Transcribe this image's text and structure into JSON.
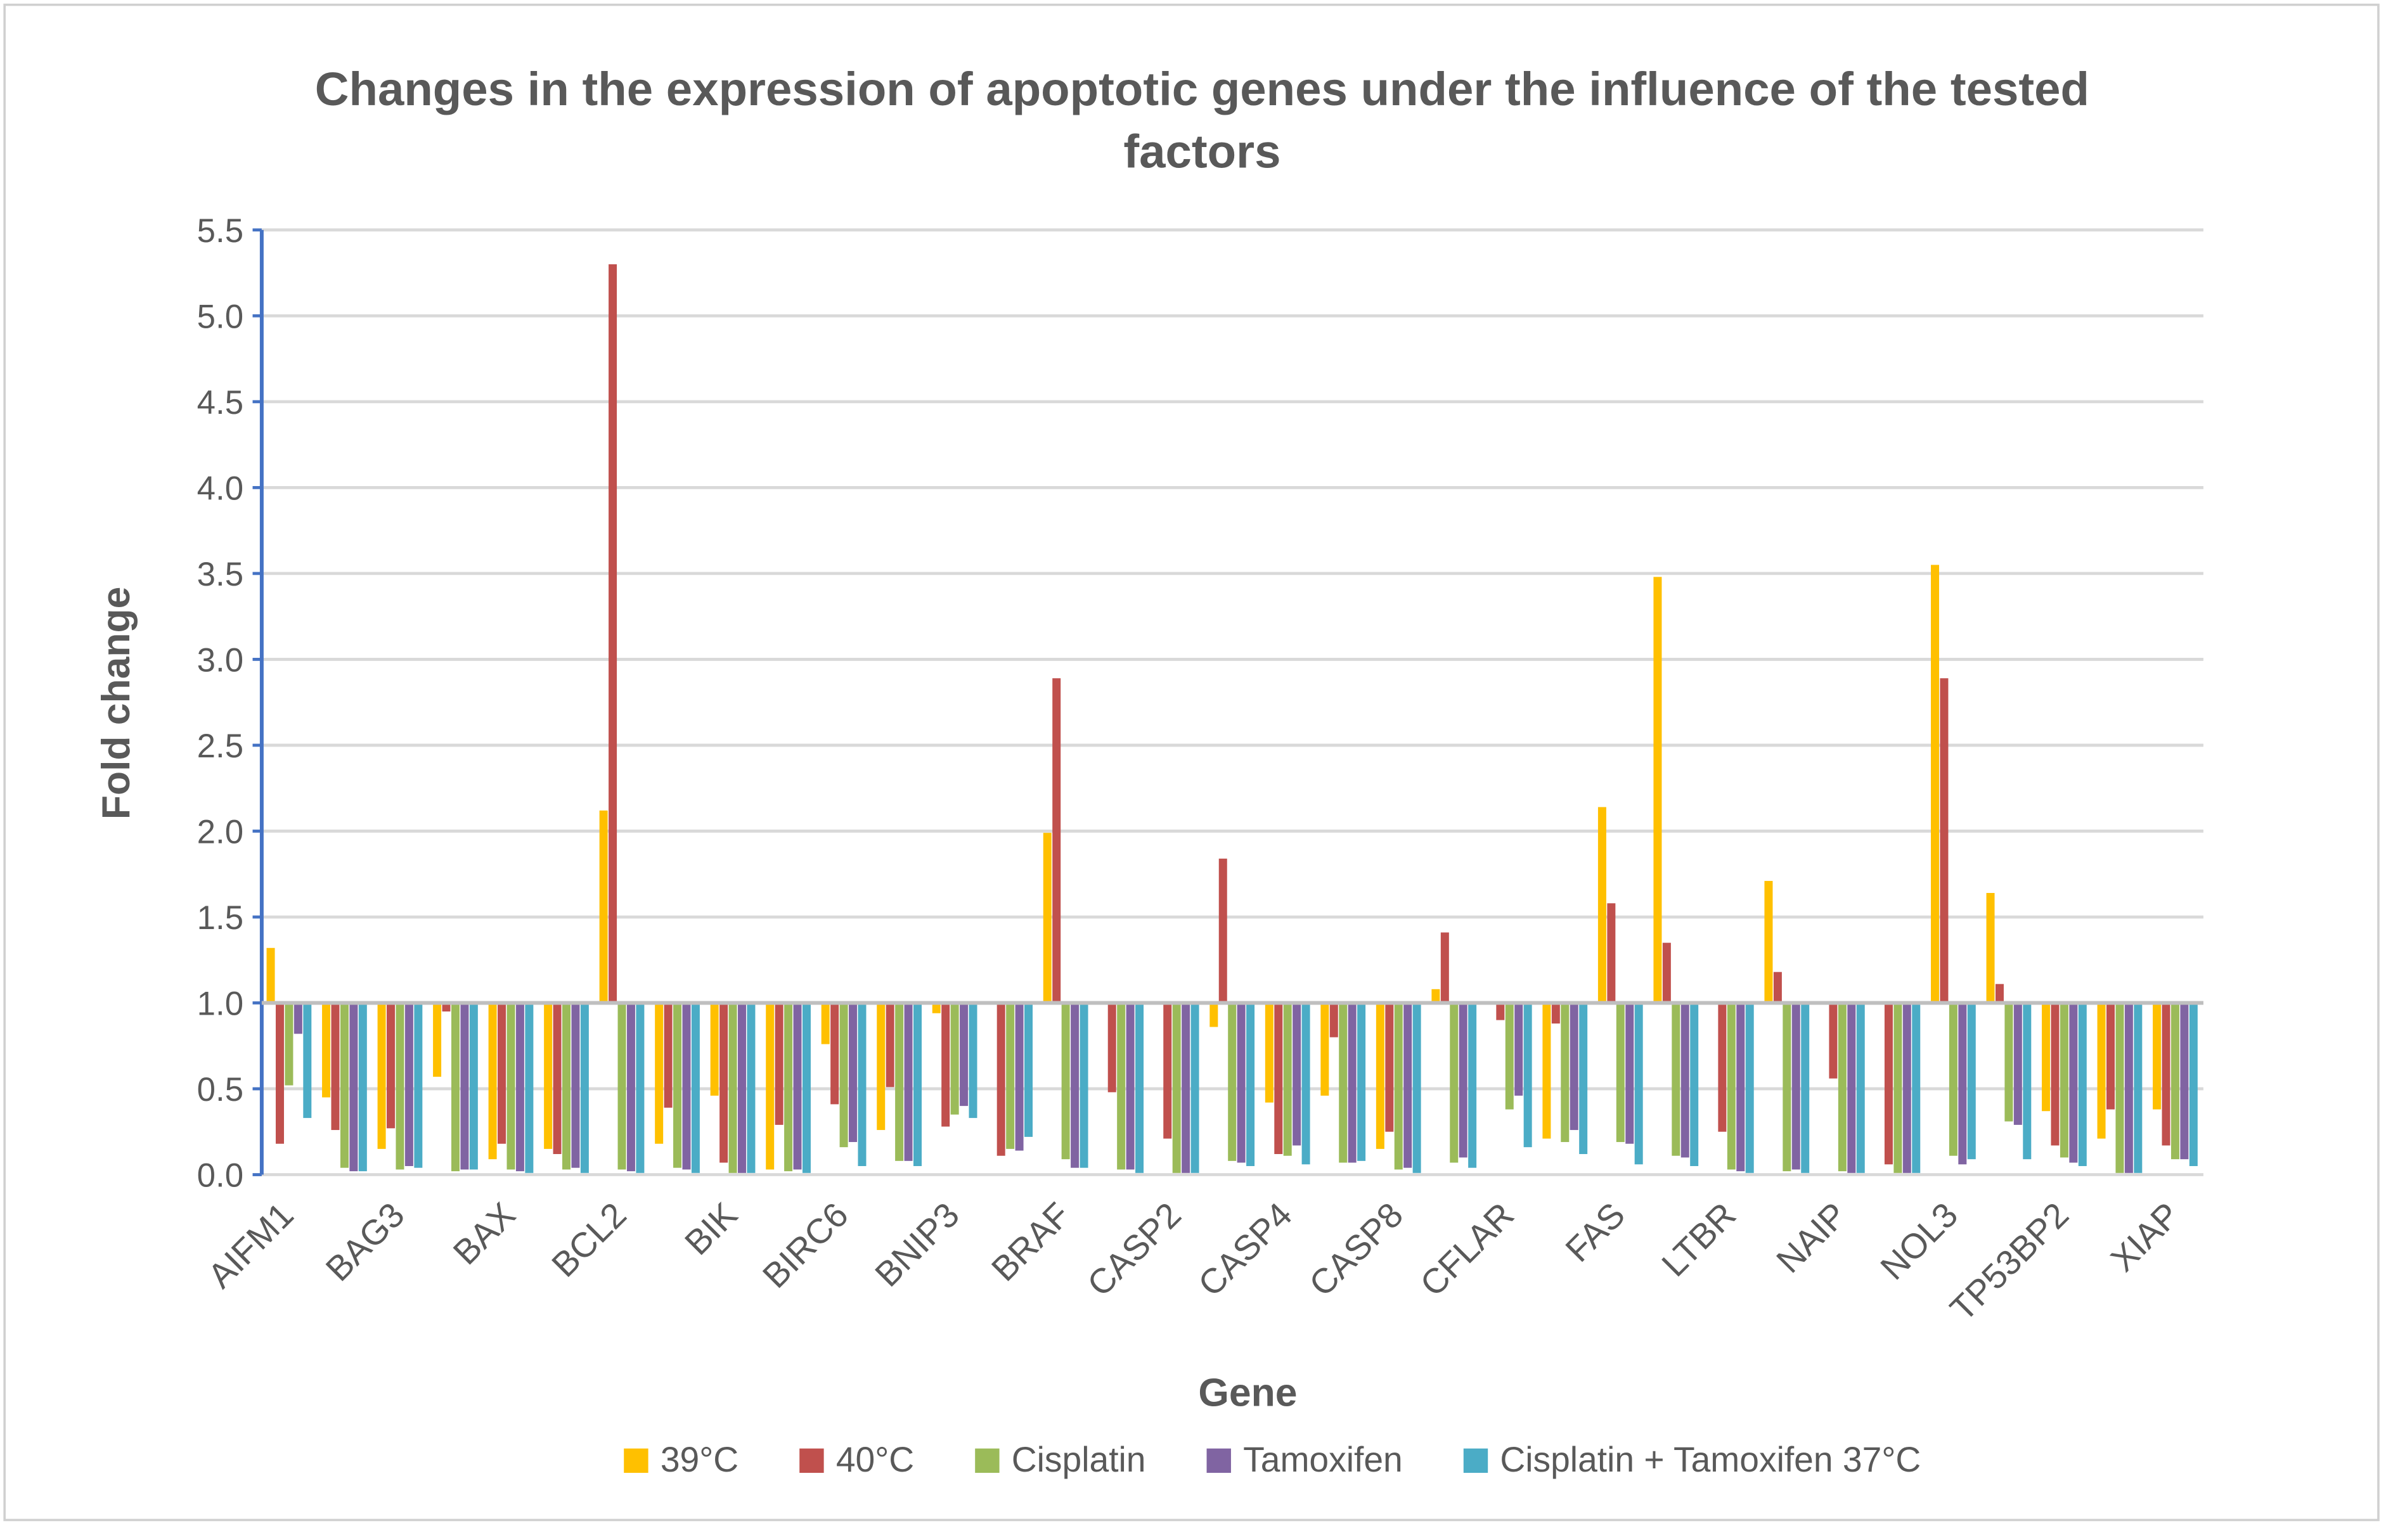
{
  "chart_data": {
    "type": "bar",
    "title": "Changes in the expression of apoptotic genes under the influence of the tested factors",
    "x_label": "Gene",
    "y_label": "Fold change",
    "categories": [
      "AIFM1",
      null,
      "BAG3",
      null,
      "BAX",
      null,
      "BCL2",
      null,
      "BIK",
      null,
      "BIRC6",
      null,
      "BNIP3",
      null,
      "BRAF",
      null,
      "CASP2",
      null,
      "CASP4",
      null,
      "CASP8",
      null,
      "CFLAR",
      null,
      "FAS",
      null,
      "LTBR",
      null,
      "NAIP",
      null,
      "NOL3",
      null,
      "TP53BP2",
      null,
      "XIAP"
    ],
    "baseline": 1,
    "ylim": [
      0,
      5.5
    ],
    "yticks": [
      {
        "value": 0,
        "label": "0.0"
      },
      0.5,
      {
        "value": 1,
        "label": "1.0"
      },
      1.5,
      {
        "value": 2,
        "label": "2.0"
      },
      2.5,
      {
        "value": 3,
        "label": "3.0"
      },
      3.5,
      {
        "value": 4,
        "label": "4.0"
      },
      4.5,
      {
        "value": 5,
        "label": "5.0"
      },
      5.5
    ],
    "grid": true,
    "legend": "bottom",
    "series": [
      {
        "name": "39°C",
        "color": "#FFC000",
        "values": [
          1.32,
          0.45,
          0.15,
          0.57,
          0.09,
          0.15,
          2.12,
          0.18,
          0.46,
          0.03,
          0.76,
          0.26,
          0.94,
          1.0,
          1.99,
          1.0,
          1.0,
          0.86,
          0.42,
          0.46,
          0.15,
          1.08,
          1.0,
          0.21,
          2.14,
          3.48,
          1.0,
          1.71,
          1.0,
          1.0,
          3.55,
          1.64,
          0.37,
          0.21,
          0.38
        ]
      },
      {
        "name": "40°C",
        "color": "#C0504D",
        "values": [
          0.18,
          0.26,
          0.27,
          0.95,
          0.18,
          0.12,
          5.3,
          0.39,
          0.07,
          0.29,
          0.41,
          0.51,
          0.28,
          0.11,
          2.89,
          0.48,
          0.21,
          1.84,
          0.12,
          0.8,
          0.25,
          1.41,
          0.9,
          0.88,
          1.58,
          1.35,
          0.25,
          1.18,
          0.56,
          0.06,
          2.89,
          1.11,
          0.17,
          0.38,
          0.17
        ]
      },
      {
        "name": "Cisplatin",
        "color": "#9BBB59",
        "values": [
          0.52,
          0.04,
          0.03,
          0.02,
          0.03,
          0.03,
          0.03,
          0.04,
          0.01,
          0.02,
          0.16,
          0.08,
          0.35,
          0.15,
          0.09,
          0.03,
          0.01,
          0.08,
          0.11,
          0.07,
          0.03,
          0.07,
          0.38,
          0.19,
          0.19,
          0.11,
          0.03,
          0.02,
          0.02,
          0.01,
          0.11,
          0.31,
          0.1,
          0.01,
          0.09
        ]
      },
      {
        "name": "Tamoxifen",
        "color": "#8064A2",
        "values": [
          0.82,
          0.02,
          0.05,
          0.03,
          0.02,
          0.04,
          0.02,
          0.03,
          0.01,
          0.03,
          0.19,
          0.08,
          0.4,
          0.14,
          0.04,
          0.03,
          0.01,
          0.07,
          0.17,
          0.07,
          0.04,
          0.1,
          0.46,
          0.26,
          0.18,
          0.1,
          0.02,
          0.03,
          0.01,
          0.01,
          0.06,
          0.29,
          0.07,
          0.01,
          0.09
        ]
      },
      {
        "name": "Cisplatin + Tamoxifen 37°C",
        "color": "#4BACC6",
        "values": [
          0.33,
          0.02,
          0.04,
          0.03,
          0.01,
          0.01,
          0.01,
          0.01,
          0.01,
          0.01,
          0.05,
          0.05,
          0.33,
          0.22,
          0.04,
          0.01,
          0.01,
          0.05,
          0.06,
          0.08,
          0.01,
          0.04,
          0.16,
          0.12,
          0.06,
          0.05,
          0.01,
          0.01,
          0.01,
          0.01,
          0.09,
          0.09,
          0.05,
          0.01,
          0.05
        ]
      }
    ]
  }
}
